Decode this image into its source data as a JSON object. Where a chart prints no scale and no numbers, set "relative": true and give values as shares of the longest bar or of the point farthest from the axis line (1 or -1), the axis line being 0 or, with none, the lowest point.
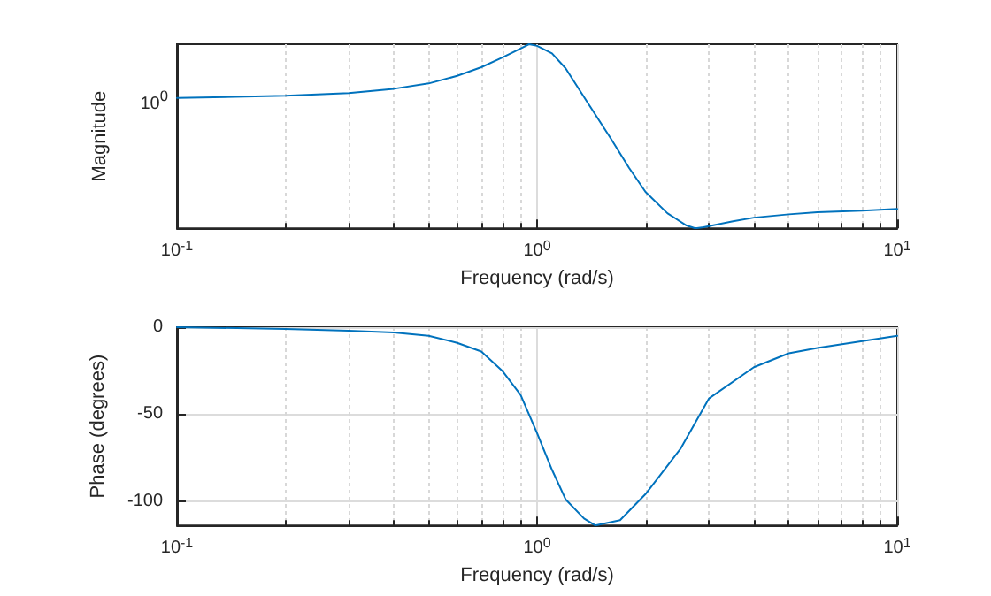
{
  "chart_data": [
    {
      "type": "line",
      "relative": true,
      "xlabel": "Frequency (rad/s)",
      "ylabel": "Magnitude",
      "log": "x",
      "grid": true,
      "xlim": [
        0.1,
        10
      ],
      "xticks": [
        {
          "value": 0.1,
          "label": "10$^{-1}$"
        },
        {
          "value": 1,
          "label": "10$^{0}$"
        },
        {
          "value": 10,
          "label": "10$^{1}$"
        }
      ],
      "annotations": [
        "10$^{0}$"
      ],
      "series": [
        {
          "color": "#0072bd",
          "x": [
            0.1,
            0.2,
            0.3,
            0.4,
            0.5,
            0.6,
            0.7,
            0.8,
            0.9,
            0.95,
            1.0,
            1.1,
            1.2,
            1.4,
            1.6,
            1.8,
            2.0,
            2.3,
            2.6,
            2.75,
            2.9,
            3.5,
            4,
            5,
            6,
            8,
            10
          ],
          "values": [
            0.708,
            0.72,
            0.735,
            0.758,
            0.787,
            0.828,
            0.875,
            0.927,
            0.977,
            1.0,
            0.991,
            0.95,
            0.869,
            0.665,
            0.49,
            0.329,
            0.198,
            0.082,
            0.015,
            0.0,
            0.006,
            0.038,
            0.058,
            0.076,
            0.087,
            0.096,
            0.105
          ]
        }
      ]
    },
    {
      "type": "line",
      "xlabel": "Frequency (rad/s)",
      "ylabel": "Phase (degrees)",
      "log": "x",
      "grid": true,
      "xlim": [
        0.1,
        10
      ],
      "xticks": [
        {
          "value": 0.1,
          "label": "10$^{-1}$"
        },
        {
          "value": 1,
          "label": "10$^{0}$"
        },
        {
          "value": 10,
          "label": "10$^{1}$"
        }
      ],
      "ylim": [
        -114,
        0
      ],
      "yticks": [
        -100,
        -50,
        0
      ],
      "series": [
        {
          "color": "#0072bd",
          "x": [
            0.1,
            0.2,
            0.3,
            0.4,
            0.5,
            0.6,
            0.7,
            0.8,
            0.9,
            1.0,
            1.1,
            1.2,
            1.35,
            1.45,
            1.7,
            2.0,
            2.5,
            3,
            4,
            5,
            6,
            8,
            10
          ],
          "values": [
            0,
            -1,
            -2,
            -3,
            -5,
            -9,
            -14,
            -25,
            -39,
            -61,
            -82,
            -99,
            -110,
            -114,
            -111,
            -96,
            -70,
            -41,
            -23,
            -15,
            -12,
            -8,
            -5
          ]
        }
      ]
    }
  ]
}
